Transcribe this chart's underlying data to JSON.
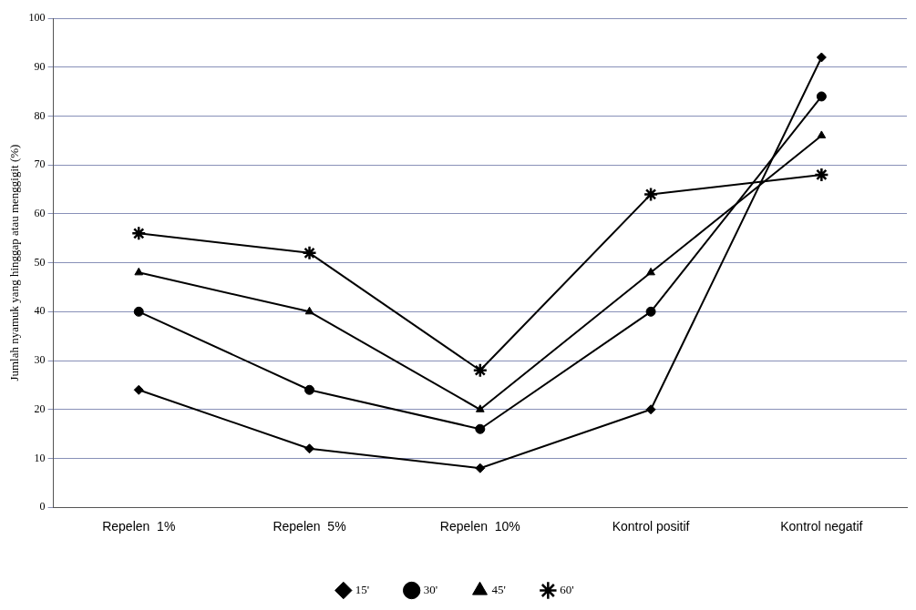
{
  "chart_data": {
    "type": "line",
    "ylabel": "Jumlah nyamuk yang hinggap atau menggigit (%)",
    "categories": [
      "Repelen  1%",
      "Repelen  5%",
      "Repelen  10%",
      "Kontrol positif",
      "Kontrol negatif"
    ],
    "series": [
      {
        "name": "15'",
        "color": "#000000",
        "marker": "diamond",
        "values": [
          24,
          12,
          8,
          20,
          92
        ]
      },
      {
        "name": "30'",
        "color": "#000000",
        "marker": "circle",
        "values": [
          40,
          24,
          16,
          40,
          84
        ]
      },
      {
        "name": "45'",
        "color": "#000000",
        "marker": "triangle",
        "values": [
          48,
          40,
          20,
          48,
          76
        ]
      },
      {
        "name": "60'",
        "color": "#000000",
        "marker": "cross",
        "values": [
          56,
          52,
          28,
          64,
          68
        ]
      }
    ],
    "ylim": [
      0,
      100
    ],
    "yticks": [
      0,
      10,
      20,
      30,
      40,
      50,
      60,
      70,
      80,
      90,
      100
    ],
    "grid": "y",
    "legend": "bottom",
    "line_style": "solid"
  }
}
